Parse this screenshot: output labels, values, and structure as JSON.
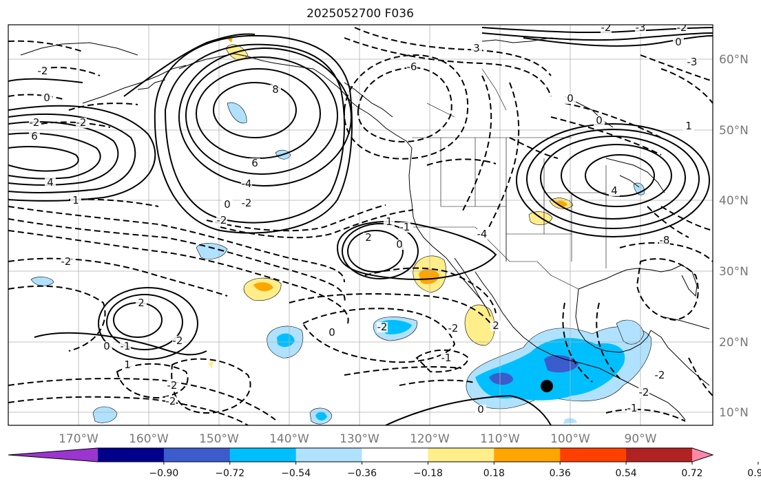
{
  "title": "2025052700 F036",
  "map": {
    "lon_ticks": [
      "170°W",
      "160°W",
      "150°W",
      "140°W",
      "130°W",
      "120°W",
      "110°W",
      "100°W",
      "90°W"
    ],
    "lat_ticks": [
      "10°N",
      "20°N",
      "30°N",
      "40°N",
      "50°N",
      "60°N"
    ],
    "contour_labels": [
      "-2",
      "0",
      "-2",
      "6",
      "-2",
      "8",
      "6",
      "-4",
      "-6",
      "4",
      "0",
      "-2",
      "2",
      "-1",
      "-2",
      "-2",
      "2",
      "0",
      "-1",
      "-2",
      "-2",
      "-2",
      "-2",
      "0",
      "-2",
      "-1",
      "1",
      "0",
      "4",
      "-3",
      "-2",
      "-3",
      "0",
      "-2",
      "1",
      "0",
      "-4",
      "3",
      "-8",
      "1",
      "0",
      "2",
      "1",
      "-2",
      "-2",
      "-1",
      "0"
    ],
    "marker": {
      "lon": -103,
      "lat": 13.5,
      "shape": "dot"
    },
    "colors": {
      "coast": "#000000",
      "grid": "#b0b0b0",
      "contour": "#000000"
    }
  },
  "colorbar": {
    "ticks": [
      "−0.90",
      "−0.72",
      "−0.54",
      "−0.36",
      "−0.18",
      "0.18",
      "0.36",
      "0.54",
      "0.72",
      "0.90"
    ],
    "colors": [
      "#9a35d0",
      "#00008b",
      "#3a5ccc",
      "#00bfff",
      "#b0e2ff",
      "#ffffff",
      "#ffee8a",
      "#ffa500",
      "#ff4000",
      "#b22222",
      "#ff88aa"
    ]
  }
}
